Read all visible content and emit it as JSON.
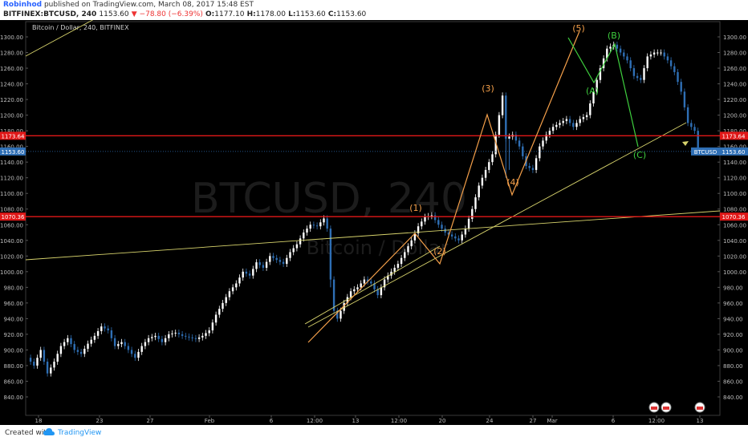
{
  "header": {
    "user": "Robinhod",
    "published": " published on TradingView.com, March 08, 2017 15:48 EST",
    "symbol": "BITFINEX:BTCUSD, 240",
    "last": "1153.60",
    "change": "▼ −78.80 (−6.39%)",
    "o_label": "O:",
    "o": "1177.10",
    "h_label": "H:",
    "h": "1178.00",
    "l_label": "L:",
    "l": "1153.60",
    "c_label": "C:",
    "c": "1153.60"
  },
  "footer": {
    "created": "Created with",
    "brand": "TradingView"
  },
  "colors": {
    "bg": "#000000",
    "up": "#ffffff",
    "down": "#2f6fb5",
    "red_line": "#e01818",
    "yellow_line": "#d7d36c",
    "impulse": "#f5a04a",
    "corrective": "#3ecf3e"
  },
  "chart_data": {
    "type": "candlestick",
    "title": "Bitcoin / Dollar, 240, BITFINEX",
    "watermark": [
      "BTCUSD, 240",
      "Bitcoin / Dollar"
    ],
    "ylim": [
      826,
      1316
    ],
    "yticks": [
      840,
      860,
      880,
      900,
      920,
      940,
      960,
      980,
      1000,
      1020,
      1040,
      1060,
      1080,
      1100,
      1120,
      1140,
      1160,
      1180,
      1200,
      1220,
      1240,
      1260,
      1280,
      1300
    ],
    "xticks": [
      "18",
      "23",
      "27",
      "Feb",
      "6",
      "12:00",
      "13",
      "12:00",
      "20",
      "24",
      "27",
      "Mar",
      "6",
      "12:00",
      "13"
    ],
    "last_price": {
      "value": 1153.6,
      "label": "1153.60",
      "tag": "BTCUSD"
    },
    "horizontal_levels": [
      {
        "value": 1173.64,
        "label": "1173.64"
      },
      {
        "value": 1070.36,
        "label": "1070.36"
      }
    ],
    "wave_labels": [
      "(1)",
      "(2)",
      "(3)",
      "(4)",
      "(5)",
      "(A)",
      "(B)",
      "(C)"
    ],
    "price_path": [
      [
        0,
        890
      ],
      [
        2,
        880
      ],
      [
        4,
        900
      ],
      [
        6,
        870
      ],
      [
        8,
        885
      ],
      [
        10,
        905
      ],
      [
        12,
        915
      ],
      [
        14,
        900
      ],
      [
        16,
        895
      ],
      [
        18,
        908
      ],
      [
        20,
        918
      ],
      [
        22,
        930
      ],
      [
        24,
        925
      ],
      [
        26,
        905
      ],
      [
        28,
        910
      ],
      [
        30,
        900
      ],
      [
        32,
        890
      ],
      [
        34,
        905
      ],
      [
        36,
        915
      ],
      [
        38,
        918
      ],
      [
        40,
        910
      ],
      [
        42,
        920
      ],
      [
        44,
        922
      ],
      [
        46,
        918
      ],
      [
        48,
        916
      ],
      [
        50,
        914
      ],
      [
        52,
        918
      ],
      [
        54,
        925
      ],
      [
        56,
        945
      ],
      [
        58,
        960
      ],
      [
        60,
        975
      ],
      [
        62,
        985
      ],
      [
        64,
        1000
      ],
      [
        66,
        995
      ],
      [
        68,
        1012
      ],
      [
        70,
        1005
      ],
      [
        72,
        1020
      ],
      [
        74,
        1015
      ],
      [
        76,
        1010
      ],
      [
        78,
        1025
      ],
      [
        80,
        1035
      ],
      [
        82,
        1050
      ],
      [
        84,
        1060
      ],
      [
        86,
        1058
      ],
      [
        88,
        1068
      ],
      [
        89,
        1055
      ],
      [
        90,
        990
      ],
      [
        91,
        950
      ],
      [
        92,
        940
      ],
      [
        94,
        960
      ],
      [
        96,
        975
      ],
      [
        98,
        980
      ],
      [
        100,
        990
      ],
      [
        102,
        985
      ],
      [
        104,
        970
      ],
      [
        106,
        990
      ],
      [
        108,
        1000
      ],
      [
        110,
        1010
      ],
      [
        112,
        1025
      ],
      [
        114,
        1040
      ],
      [
        116,
        1058
      ],
      [
        118,
        1070
      ],
      [
        120,
        1072
      ],
      [
        122,
        1060
      ],
      [
        124,
        1050
      ],
      [
        126,
        1045
      ],
      [
        128,
        1040
      ],
      [
        130,
        1055
      ],
      [
        132,
        1080
      ],
      [
        134,
        1110
      ],
      [
        136,
        1130
      ],
      [
        138,
        1150
      ],
      [
        140,
        1200
      ],
      [
        141,
        1225
      ],
      [
        142,
        1170
      ],
      [
        144,
        1175
      ],
      [
        146,
        1160
      ],
      [
        148,
        1135
      ],
      [
        150,
        1130
      ],
      [
        152,
        1160
      ],
      [
        154,
        1175
      ],
      [
        156,
        1185
      ],
      [
        158,
        1190
      ],
      [
        160,
        1195
      ],
      [
        162,
        1185
      ],
      [
        164,
        1195
      ],
      [
        166,
        1200
      ],
      [
        168,
        1230
      ],
      [
        170,
        1260
      ],
      [
        172,
        1285
      ],
      [
        174,
        1290
      ],
      [
        176,
        1280
      ],
      [
        178,
        1270
      ],
      [
        180,
        1250
      ],
      [
        182,
        1245
      ],
      [
        184,
        1275
      ],
      [
        186,
        1280
      ],
      [
        188,
        1280
      ],
      [
        190,
        1270
      ],
      [
        192,
        1255
      ],
      [
        194,
        1230
      ],
      [
        196,
        1190
      ],
      [
        198,
        1180
      ],
      [
        199,
        1158
      ]
    ]
  }
}
